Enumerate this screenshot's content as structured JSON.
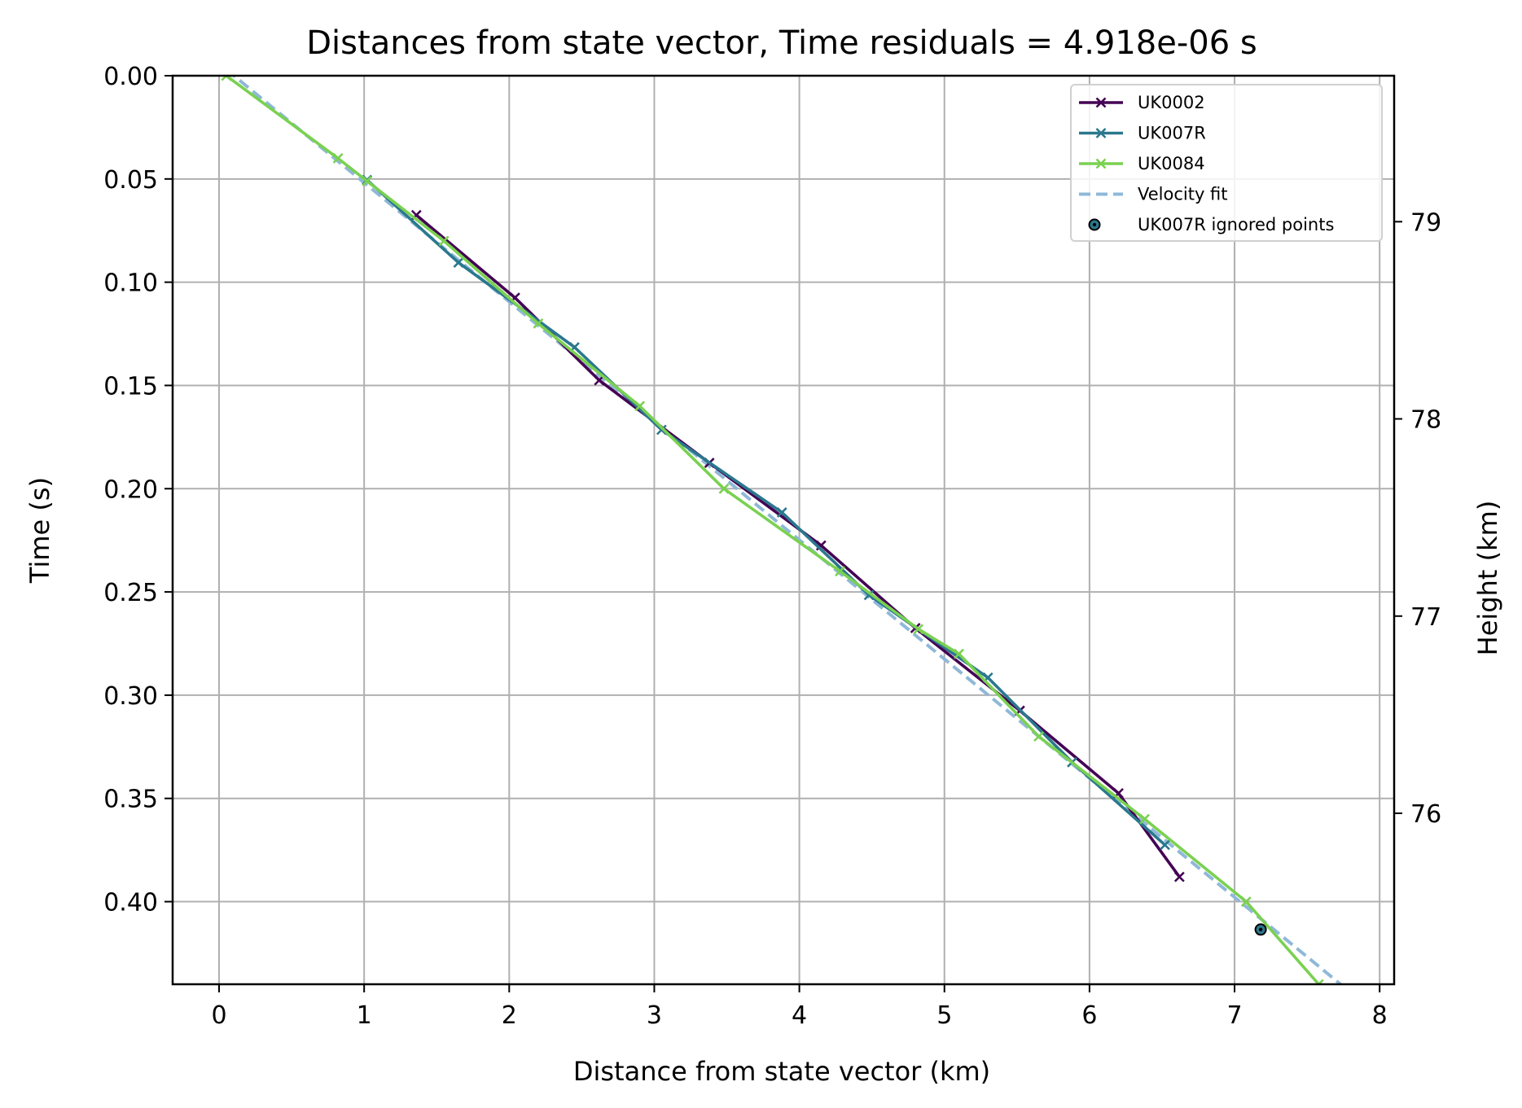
{
  "chart_data": {
    "type": "line",
    "title": "Distances from state vector, Time residuals = 4.918e-06 s",
    "xlabel": "Distance from state vector (km)",
    "ylabel": "Time (s)",
    "y2label": "Height (km)",
    "xlim": [
      -0.32,
      8.1
    ],
    "ylim": [
      0.44,
      0.0
    ],
    "y_inverted": true,
    "x_ticks": [
      0,
      1,
      2,
      3,
      4,
      5,
      6,
      7,
      8
    ],
    "y_ticks": [
      "0.00",
      "0.05",
      "0.10",
      "0.15",
      "0.20",
      "0.25",
      "0.30",
      "0.35",
      "0.40"
    ],
    "y2_ticks": [
      79,
      78,
      77,
      76
    ],
    "y2_tick_time_positions": [
      0.0707,
      0.1662,
      0.2617,
      0.3572
    ],
    "grid": true,
    "legend_position": "top-right",
    "series": [
      {
        "name": "UK0002",
        "color": "#440154",
        "marker": "x",
        "points": [
          [
            1.36,
            0.0675
          ],
          [
            2.04,
            0.1075
          ],
          [
            2.62,
            0.1475
          ],
          [
            3.38,
            0.1875
          ],
          [
            4.15,
            0.2275
          ],
          [
            4.8,
            0.2675
          ],
          [
            5.52,
            0.3075
          ],
          [
            6.2,
            0.3475
          ],
          [
            6.62,
            0.388
          ]
        ]
      },
      {
        "name": "UK007R",
        "color": "#2a788e",
        "marker": "x",
        "points": [
          [
            1.02,
            0.0505
          ],
          [
            1.65,
            0.0905
          ],
          [
            2.45,
            0.1315
          ],
          [
            3.05,
            0.1715
          ],
          [
            3.88,
            0.2115
          ],
          [
            4.48,
            0.2515
          ],
          [
            5.3,
            0.2915
          ],
          [
            5.88,
            0.3325
          ],
          [
            6.52,
            0.3725
          ]
        ]
      },
      {
        "name": "UK0084",
        "color": "#7ad151",
        "marker": "x",
        "points": [
          [
            0.05,
            0.0
          ],
          [
            0.82,
            0.04
          ],
          [
            1.02,
            0.051
          ],
          [
            1.55,
            0.08
          ],
          [
            2.2,
            0.12
          ],
          [
            2.9,
            0.16
          ],
          [
            3.48,
            0.2
          ],
          [
            4.28,
            0.24
          ],
          [
            4.82,
            0.268
          ],
          [
            5.1,
            0.28
          ],
          [
            5.65,
            0.32
          ],
          [
            6.38,
            0.36
          ],
          [
            7.08,
            0.4
          ],
          [
            7.58,
            0.44
          ]
        ]
      }
    ],
    "fit": {
      "name": "Velocity fit",
      "color": "#8fb8d8",
      "style": "dashed",
      "points": [
        [
          0.05,
          -0.003
        ],
        [
          7.8,
          0.444
        ]
      ]
    },
    "ignored": {
      "name": "UK007R ignored points",
      "color": "#2a788e",
      "points": [
        [
          7.18,
          0.4135
        ]
      ]
    },
    "legend": [
      "UK0002",
      "UK007R",
      "UK0084",
      "Velocity fit",
      "UK007R ignored points"
    ]
  }
}
